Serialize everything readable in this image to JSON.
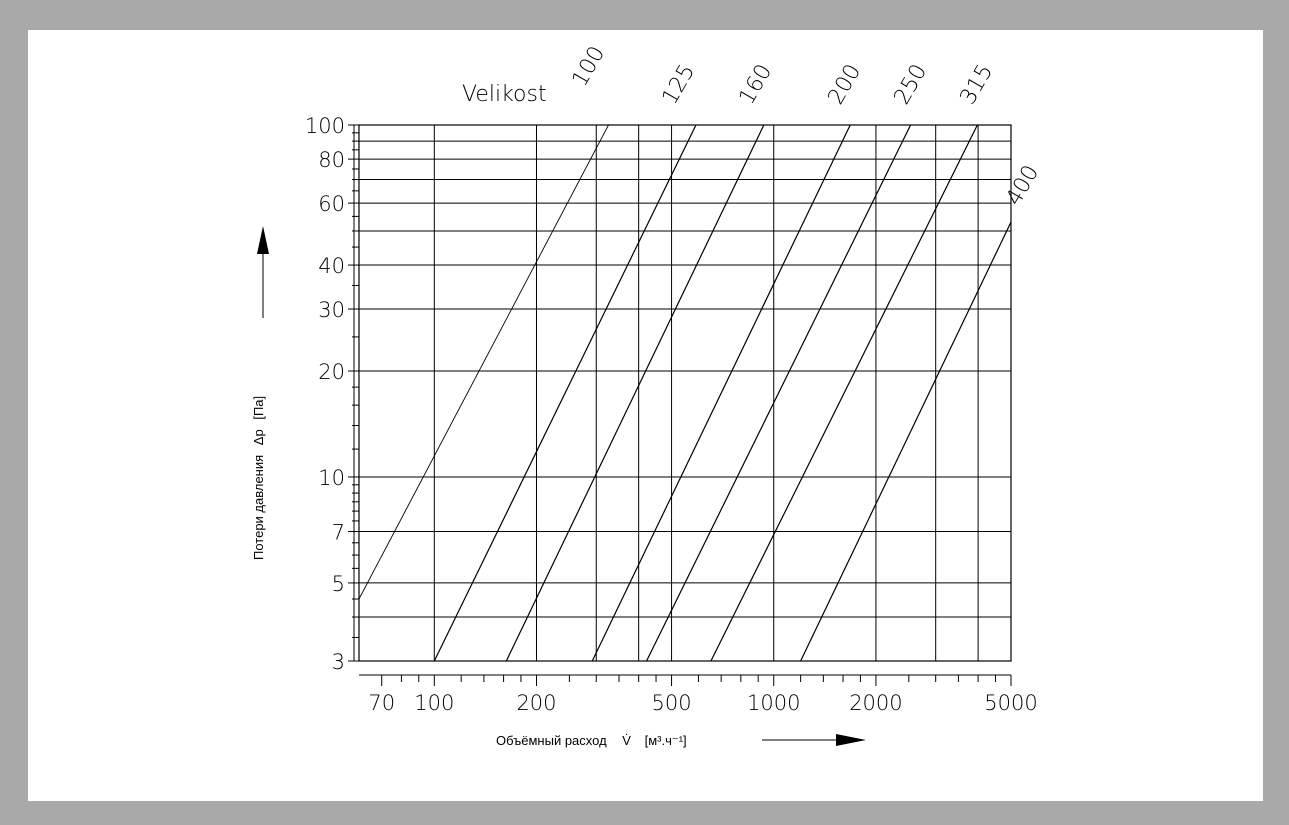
{
  "chart_data": {
    "type": "line",
    "title_prefix": "Velikost",
    "xlabel": "Объёмный расход",
    "xlabel_symbol": "V̇",
    "xlabel_unit": "[м³.ч⁻¹]",
    "ylabel": "Потери давления",
    "ylabel_symbol": "Δp",
    "ylabel_unit": "[Па]",
    "x_scale": "log",
    "y_scale": "log",
    "xlim": [
      60,
      5000
    ],
    "ylim": [
      3,
      100
    ],
    "x_ticklabels": [
      "70",
      "100",
      "200",
      "500",
      "1000",
      "2000",
      "5000"
    ],
    "y_ticklabels": [
      "100",
      "80",
      "60",
      "40",
      "30",
      "20",
      "10",
      "7",
      "5",
      "3"
    ],
    "grid": true,
    "series": [
      {
        "name": "100",
        "points": [
          [
            60,
            4.5
          ],
          [
            326,
            100
          ]
        ]
      },
      {
        "name": "125",
        "points": [
          [
            100,
            3.0
          ],
          [
            590,
            100
          ]
        ]
      },
      {
        "name": "160",
        "points": [
          [
            163,
            3.0
          ],
          [
            935,
            100
          ]
        ]
      },
      {
        "name": "200",
        "points": [
          [
            292,
            3.0
          ],
          [
            1680,
            100
          ]
        ]
      },
      {
        "name": "250",
        "points": [
          [
            422,
            3.0
          ],
          [
            2530,
            100
          ]
        ]
      },
      {
        "name": "315",
        "points": [
          [
            653,
            3.0
          ],
          [
            3980,
            100
          ]
        ]
      },
      {
        "name": "400",
        "points": [
          [
            1200,
            3.0
          ],
          [
            5000,
            53
          ]
        ]
      }
    ]
  }
}
